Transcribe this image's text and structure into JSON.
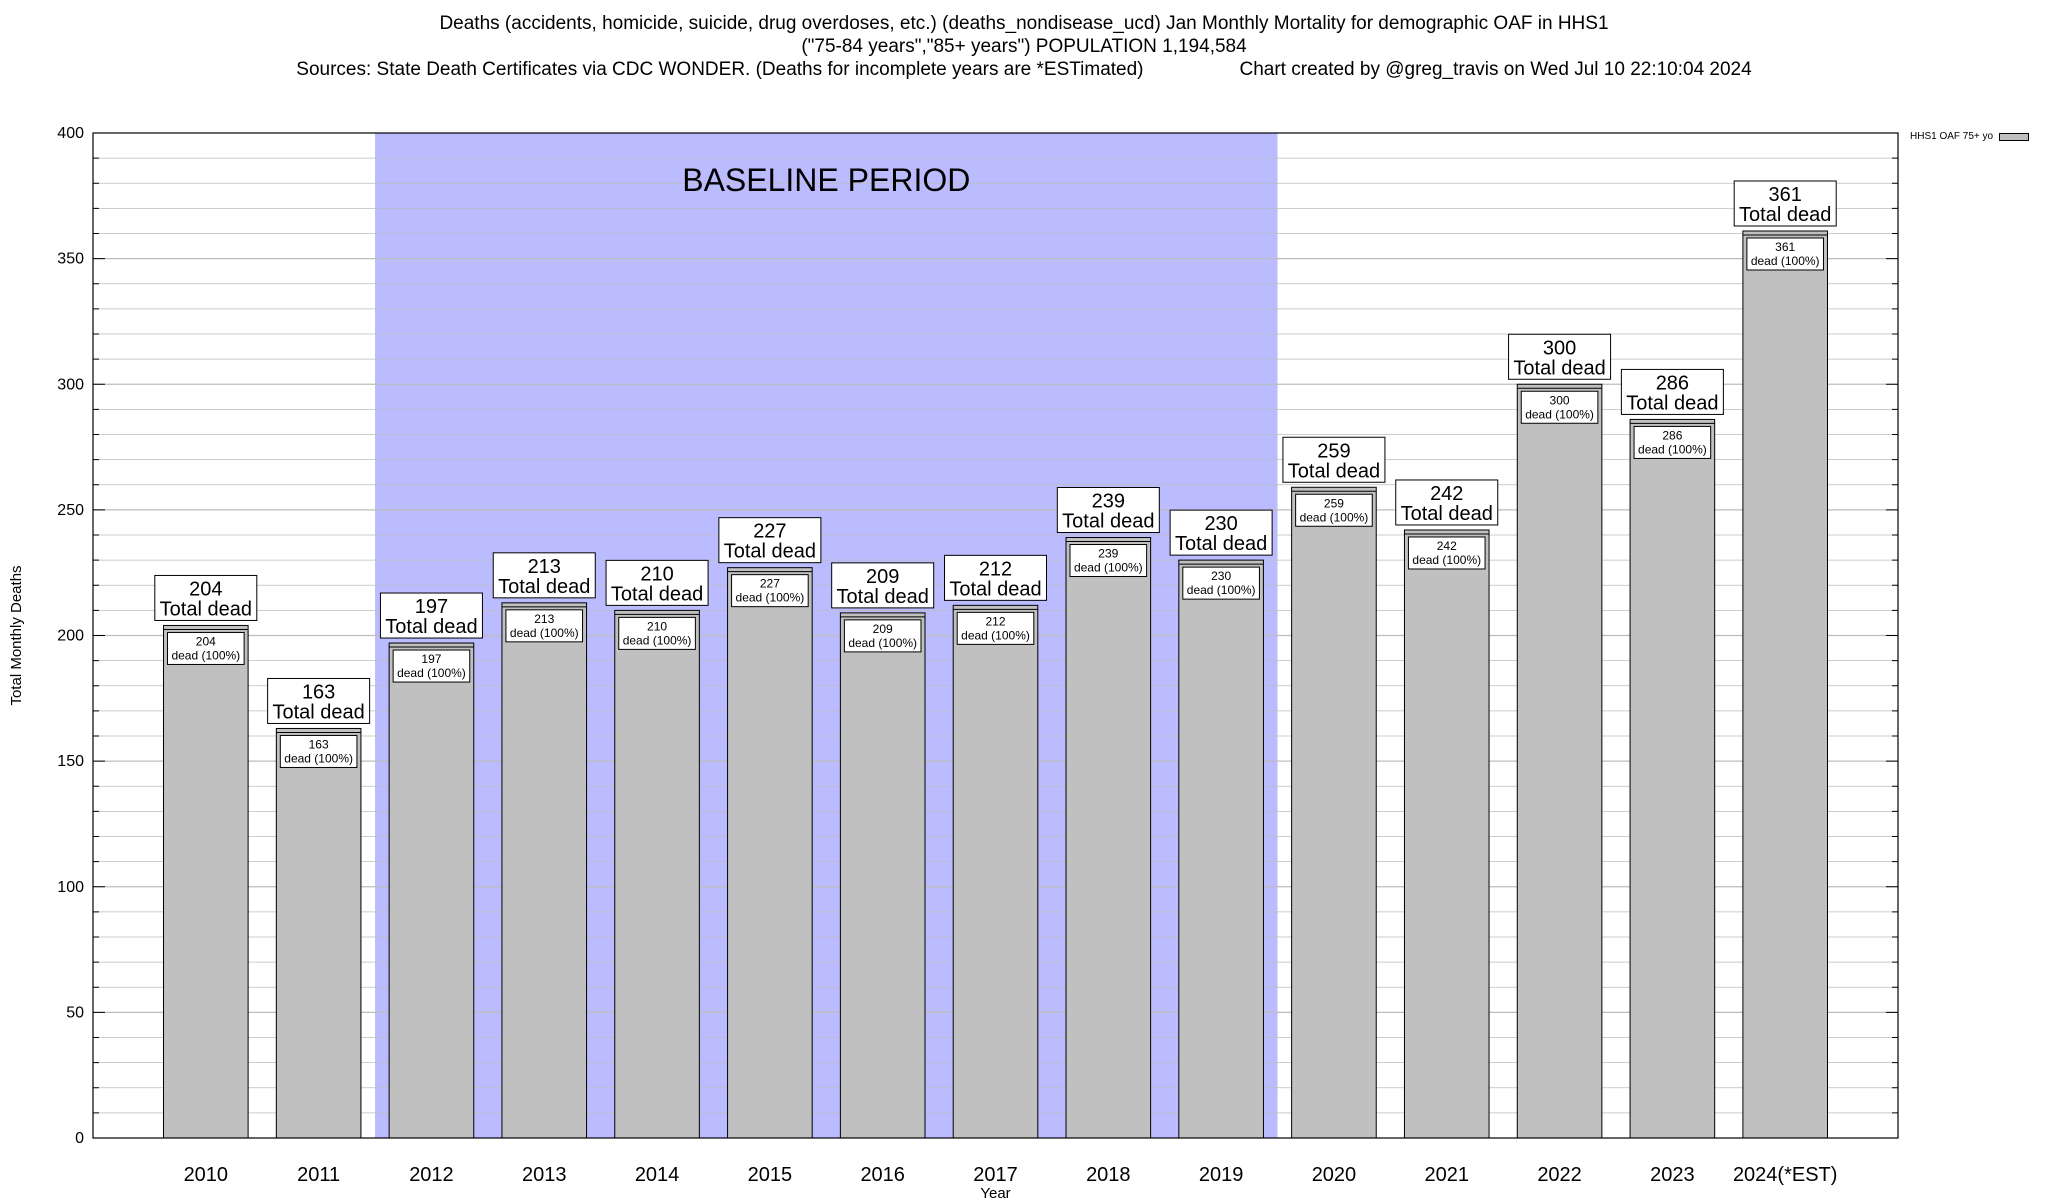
{
  "header": {
    "title": "Deaths (accidents, homicide, suicide, drug overdoses, etc.) (deaths_nondisease_ucd) Jan Monthly Mortality for demographic OAF in HHS1",
    "subtitle": "(\"75-84 years\",\"85+ years\") POPULATION 1,194,584",
    "sources": "Sources: State Death Certificates via CDC WONDER. (Deaths for incomplete years are *ESTimated)",
    "credit": "Chart created by @greg_travis on Wed Jul 10 22:10:04 2024"
  },
  "colors": {
    "bar_fill": "#c0c0c0",
    "baseline_fill": "#bbbbff",
    "grid": "#bdbdbd",
    "axis": "#000000"
  },
  "chart_data": {
    "type": "bar",
    "title": "Deaths (accidents, homicide, suicide, drug overdoses, etc.) (deaths_nondisease_ucd) Jan Monthly Mortality for demographic OAF in HHS1",
    "xlabel": "Year",
    "ylabel": "Total Monthly Deaths",
    "ylim": [
      0,
      400
    ],
    "yticks": [
      0,
      50,
      100,
      150,
      200,
      250,
      300,
      350,
      400
    ],
    "yticks_labels": [
      "0",
      "50",
      "100",
      "150",
      "200",
      "250",
      "300",
      "350",
      "400"
    ],
    "grid": true,
    "legend_position": "top-right",
    "categories": [
      "2010",
      "2011",
      "2012",
      "2013",
      "2014",
      "2015",
      "2016",
      "2017",
      "2018",
      "2019",
      "2020",
      "2021",
      "2022",
      "2023",
      "2024(*EST)"
    ],
    "series": [
      {
        "name": "HHS1 OAF 75+ yo",
        "values": [
          204,
          163,
          197,
          213,
          210,
          227,
          209,
          212,
          239,
          230,
          259,
          242,
          300,
          286,
          361
        ]
      }
    ],
    "total_label_suffix": "Total dead",
    "inner_label_suffix": "dead (100%)",
    "baseline": {
      "label": "BASELINE PERIOD",
      "from": "2012",
      "to": "2019"
    }
  }
}
